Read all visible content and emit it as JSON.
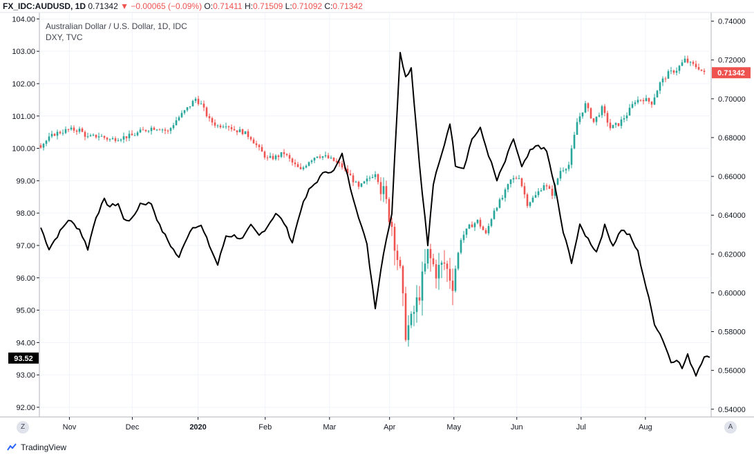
{
  "header": {
    "symbol": "FX_IDC:AUDUSD, 1D",
    "last": "0.71342",
    "change": "−0.00065 (−0.09%)",
    "open_label": "O:",
    "open": "0.71411",
    "high_label": "H:",
    "high": "0.71509",
    "low_label": "L:",
    "low": "0.71092",
    "close_label": "C:",
    "close": "0.71342"
  },
  "legend": {
    "main": "Australian Dollar / U.S. Dollar, 1D, IDC",
    "compare": "DXY, TVC"
  },
  "branding": "TradingView",
  "buttons": {
    "zoom": "Z",
    "auto": "A"
  },
  "colors": {
    "up": "#26a69a",
    "down": "#ef5350",
    "dxy": "#000000",
    "grid": "#f0f3fa"
  },
  "chart_data": {
    "type": "candlestick+line",
    "left_axis": {
      "series": "DXY",
      "ylim": [
        91.7,
        104.2
      ],
      "ticks": [
        "104.00",
        "103.00",
        "102.00",
        "101.00",
        "100.00",
        "99.00",
        "98.00",
        "97.00",
        "96.00",
        "95.00",
        "94.00",
        "93.00",
        "92.00"
      ]
    },
    "right_axis": {
      "series": "AUDUSD",
      "ylim": [
        0.536,
        0.7445
      ],
      "ticks": [
        "0.74000",
        "0.72000",
        "0.70000",
        "0.68000",
        "0.66000",
        "0.64000",
        "0.62000",
        "0.60000",
        "0.58000",
        "0.56000",
        "0.54000"
      ]
    },
    "x_labels": [
      "Nov",
      "Dec",
      "2020",
      "Feb",
      "Mar",
      "Apr",
      "May",
      "Jun",
      "Jul",
      "Aug"
    ],
    "last_labels": {
      "dxy": "93.52",
      "audusd": "0.71342"
    },
    "dxy_keypoints": [
      [
        0,
        97.55
      ],
      [
        3,
        96.9
      ],
      [
        6,
        97.3
      ],
      [
        10,
        97.8
      ],
      [
        14,
        97.5
      ],
      [
        17,
        96.9
      ],
      [
        20,
        97.9
      ],
      [
        23,
        98.4
      ],
      [
        25,
        98.2
      ],
      [
        28,
        98.3
      ],
      [
        30,
        97.8
      ],
      [
        33,
        97.8
      ],
      [
        36,
        98.3
      ],
      [
        40,
        98.3
      ],
      [
        43,
        97.6
      ],
      [
        47,
        97.0
      ],
      [
        50,
        96.6
      ],
      [
        52,
        97.1
      ],
      [
        55,
        97.6
      ],
      [
        58,
        97.6
      ],
      [
        61,
        97.0
      ],
      [
        64,
        96.4
      ],
      [
        67,
        97.3
      ],
      [
        70,
        97.3
      ],
      [
        73,
        97.2
      ],
      [
        76,
        97.6
      ],
      [
        79,
        97.3
      ],
      [
        82,
        97.6
      ],
      [
        85,
        98.0
      ],
      [
        88,
        97.7
      ],
      [
        91,
        97.1
      ],
      [
        94,
        98.1
      ],
      [
        97,
        98.7
      ],
      [
        100,
        99.0
      ],
      [
        103,
        99.3
      ],
      [
        106,
        99.3
      ],
      [
        109,
        99.8
      ],
      [
        112,
        98.8
      ],
      [
        115,
        97.9
      ],
      [
        118,
        97.0
      ],
      [
        121,
        95.1
      ],
      [
        124,
        96.8
      ],
      [
        127,
        98.0
      ],
      [
        130,
        103.0
      ],
      [
        132,
        102.2
      ],
      [
        134,
        102.5
      ],
      [
        137,
        99.5
      ],
      [
        140,
        97.0
      ],
      [
        142,
        98.9
      ],
      [
        145,
        99.8
      ],
      [
        148,
        100.8
      ],
      [
        150,
        99.5
      ],
      [
        153,
        99.4
      ],
      [
        156,
        100.3
      ],
      [
        159,
        100.6
      ],
      [
        162,
        99.8
      ],
      [
        165,
        99.0
      ],
      [
        168,
        99.6
      ],
      [
        171,
        100.3
      ],
      [
        174,
        99.4
      ],
      [
        177,
        99.9
      ],
      [
        180,
        100.1
      ],
      [
        183,
        99.9
      ],
      [
        186,
        98.8
      ],
      [
        189,
        97.4
      ],
      [
        192,
        96.5
      ],
      [
        195,
        97.6
      ],
      [
        198,
        97.2
      ],
      [
        201,
        96.8
      ],
      [
        204,
        97.6
      ],
      [
        207,
        97.0
      ],
      [
        210,
        97.5
      ],
      [
        213,
        97.3
      ],
      [
        216,
        96.8
      ],
      [
        219,
        95.7
      ],
      [
        222,
        94.6
      ],
      [
        225,
        94.1
      ],
      [
        228,
        93.4
      ],
      [
        230,
        93.5
      ],
      [
        232,
        93.2
      ],
      [
        234,
        93.6
      ],
      [
        237,
        93.0
      ],
      [
        240,
        93.6
      ],
      [
        242,
        93.5
      ]
    ],
    "aud_keypoints": [
      [
        0,
        0.676
      ],
      [
        5,
        0.682
      ],
      [
        10,
        0.684
      ],
      [
        14,
        0.684
      ],
      [
        17,
        0.68
      ],
      [
        21,
        0.681
      ],
      [
        25,
        0.679
      ],
      [
        29,
        0.68
      ],
      [
        33,
        0.681
      ],
      [
        36,
        0.683
      ],
      [
        40,
        0.685
      ],
      [
        43,
        0.685
      ],
      [
        46,
        0.683
      ],
      [
        49,
        0.689
      ],
      [
        53,
        0.695
      ],
      [
        56,
        0.7
      ],
      [
        58,
        0.697
      ],
      [
        61,
        0.689
      ],
      [
        64,
        0.686
      ],
      [
        67,
        0.687
      ],
      [
        70,
        0.684
      ],
      [
        73,
        0.683
      ],
      [
        76,
        0.68
      ],
      [
        79,
        0.674
      ],
      [
        82,
        0.669
      ],
      [
        85,
        0.67
      ],
      [
        88,
        0.672
      ],
      [
        91,
        0.667
      ],
      [
        94,
        0.663
      ],
      [
        97,
        0.668
      ],
      [
        100,
        0.671
      ],
      [
        103,
        0.67
      ],
      [
        106,
        0.668
      ],
      [
        109,
        0.665
      ],
      [
        112,
        0.66
      ],
      [
        115,
        0.654
      ],
      [
        118,
        0.658
      ],
      [
        121,
        0.662
      ],
      [
        124,
        0.651
      ],
      [
        127,
        0.635
      ],
      [
        130,
        0.61
      ],
      [
        132,
        0.58
      ],
      [
        134,
        0.585
      ],
      [
        137,
        0.6
      ],
      [
        140,
        0.62
      ],
      [
        143,
        0.611
      ],
      [
        146,
        0.615
      ],
      [
        149,
        0.605
      ],
      [
        152,
        0.628
      ],
      [
        155,
        0.634
      ],
      [
        158,
        0.637
      ],
      [
        161,
        0.63
      ],
      [
        164,
        0.643
      ],
      [
        167,
        0.649
      ],
      [
        170,
        0.658
      ],
      [
        173,
        0.66
      ],
      [
        176,
        0.646
      ],
      [
        179,
        0.65
      ],
      [
        182,
        0.656
      ],
      [
        185,
        0.651
      ],
      [
        188,
        0.663
      ],
      [
        191,
        0.666
      ],
      [
        194,
        0.688
      ],
      [
        197,
        0.697
      ],
      [
        200,
        0.688
      ],
      [
        203,
        0.695
      ],
      [
        206,
        0.685
      ],
      [
        209,
        0.687
      ],
      [
        212,
        0.692
      ],
      [
        215,
        0.699
      ],
      [
        218,
        0.7
      ],
      [
        221,
        0.698
      ],
      [
        224,
        0.708
      ],
      [
        227,
        0.713
      ],
      [
        230,
        0.715
      ],
      [
        233,
        0.72
      ],
      [
        235,
        0.718
      ],
      [
        238,
        0.716
      ],
      [
        240,
        0.713
      ]
    ]
  }
}
